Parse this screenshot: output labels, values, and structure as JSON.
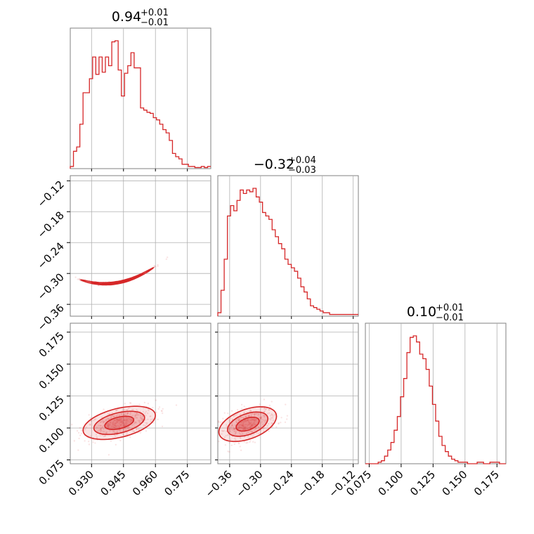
{
  "chart_data": {
    "type": "corner",
    "color": "#d62728",
    "parameters": [
      {
        "value": "0.94",
        "plus": "+0.01",
        "minus": "−0.01",
        "range": [
          0.92,
          0.986
        ]
      },
      {
        "value": "−0.32",
        "plus": "+0.04",
        "minus": "−0.03",
        "range": [
          -0.383,
          -0.11
        ]
      },
      {
        "value": "0.10",
        "plus": "+0.01",
        "minus": "−0.01",
        "range": [
          0.072,
          0.182
        ]
      }
    ],
    "ticks": [
      [
        "0.930",
        "0.945",
        "0.960",
        "0.975"
      ],
      [
        "−0.36",
        "−0.30",
        "−0.24",
        "−0.18",
        "−0.12"
      ],
      [
        "0.075",
        "0.100",
        "0.125",
        "0.150",
        "0.175"
      ]
    ],
    "tick_values": [
      [
        0.93,
        0.945,
        0.96,
        0.975
      ],
      [
        -0.36,
        -0.3,
        -0.24,
        -0.18,
        -0.12
      ],
      [
        0.075,
        0.1,
        0.125,
        0.15,
        0.175
      ]
    ],
    "histograms": [
      {
        "param": 0,
        "values": [
          2,
          16,
          20,
          41,
          70,
          70,
          83,
          103,
          87,
          103,
          89,
          103,
          95,
          117,
          118,
          91,
          67,
          88,
          95,
          107,
          93,
          93,
          56,
          54,
          52,
          51,
          47,
          45,
          41,
          36,
          33,
          26,
          14,
          11,
          9,
          4,
          4,
          2,
          2,
          1,
          1,
          2,
          1,
          2
        ]
      },
      {
        "param": 1,
        "values": [
          2,
          15,
          33,
          58,
          64,
          61,
          67,
          73,
          71,
          73,
          72,
          74,
          69,
          66,
          60,
          58,
          56,
          50,
          46,
          42,
          39,
          33,
          30,
          28,
          26,
          22,
          17,
          14,
          10,
          6,
          5,
          4,
          3,
          2,
          2,
          1,
          1,
          1,
          1,
          1,
          1,
          1,
          1,
          1
        ]
      },
      {
        "param": 2,
        "values": [
          0,
          0,
          0,
          0,
          1,
          2,
          5,
          9,
          14,
          22,
          31,
          44,
          56,
          73,
          83,
          84,
          80,
          72,
          69,
          62,
          51,
          39,
          28,
          18,
          12,
          8,
          5,
          3,
          2,
          1,
          1,
          1,
          0,
          0,
          0,
          1,
          1,
          0,
          0,
          1,
          1,
          1,
          0,
          0
        ]
      }
    ],
    "grid": true
  }
}
